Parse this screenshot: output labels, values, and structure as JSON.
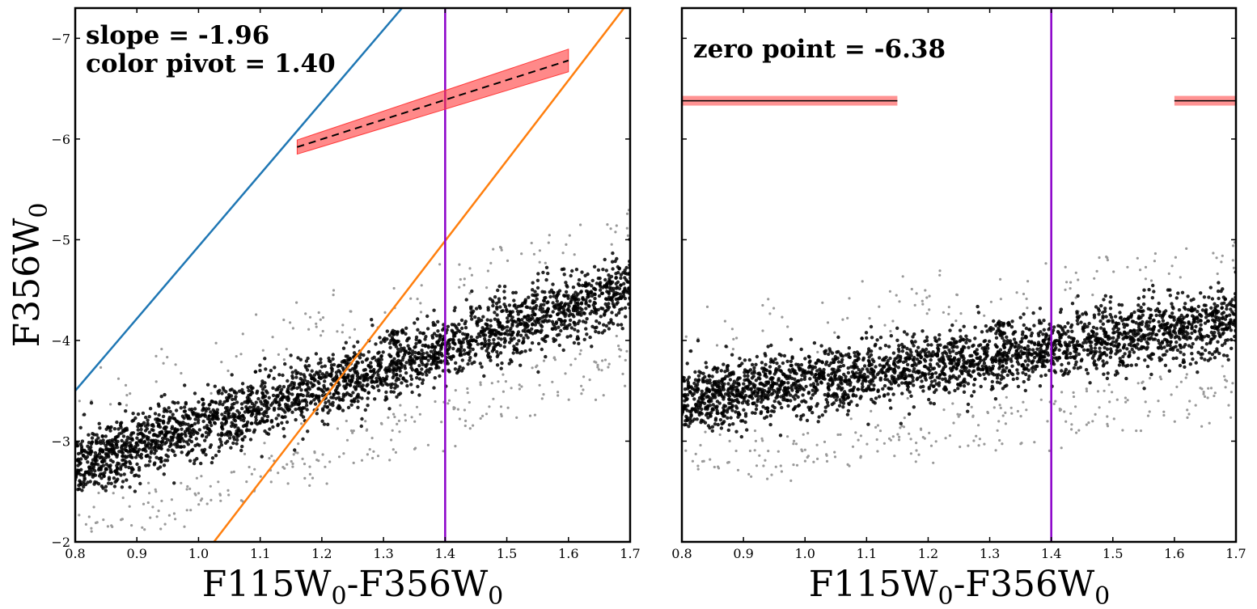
{
  "colors": {
    "blue_line": "#1f77b4",
    "orange_line": "#ff7f0e",
    "pivot_line": "#8b00c9",
    "fit_band": "#ff3b3b",
    "annotation": "#0000ee",
    "rgb_points": "#000000",
    "rejected_points": "#9a9a9a"
  },
  "chart_data": [
    {
      "type": "scatter",
      "title": "",
      "xlabel": "F115W",
      "xlabel_sub": "0",
      "xlabel_mid": "-F356W",
      "xlabel_sub2": "0",
      "ylabel": "F356W",
      "ylabel_sub": "0",
      "xlim": [
        0.8,
        1.7
      ],
      "ylim": [
        -2,
        -7.3
      ],
      "y_inverted": true,
      "xticks": [
        "0.8",
        "0.9",
        "1.0",
        "1.1",
        "1.2",
        "1.3",
        "1.4",
        "1.5",
        "1.6",
        "1.7"
      ],
      "yticks": [
        "−7",
        "−6",
        "−5",
        "−4",
        "−3",
        "−2"
      ],
      "ytick_values": [
        -7,
        -6,
        -5,
        -4,
        -3,
        -2
      ],
      "annotations": [
        "slope = -1.96",
        "color pivot = 1.40"
      ],
      "pivot_color": 1.4,
      "blue_boundary": {
        "x": [
          0.8,
          1.33
        ],
        "y": [
          -3.5,
          -7.3
        ]
      },
      "orange_boundary": {
        "x": [
          1.025,
          1.69
        ],
        "y": [
          -2.0,
          -7.3
        ]
      },
      "fit_line": {
        "x": [
          1.16,
          1.6
        ],
        "y": [
          -5.92,
          -6.78
        ],
        "band": 0.07
      },
      "scatter_density": {
        "selected_ridge": {
          "x_at_mag_minus3": 0.92,
          "slope": -1.96
        },
        "series": [
          {
            "name": "selected stars",
            "color": "#000000",
            "count": "dense"
          },
          {
            "name": "rejected stars",
            "color": "#9a9a9a",
            "count": "sparse"
          }
        ]
      }
    },
    {
      "type": "scatter",
      "title": "",
      "xlabel": "F115W",
      "xlabel_sub": "0",
      "xlabel_mid": "-F356W",
      "xlabel_sub2": "0",
      "xlim": [
        0.8,
        1.7
      ],
      "ylim": [
        -2,
        -7.3
      ],
      "y_inverted": true,
      "xticks": [
        "0.8",
        "0.9",
        "1.0",
        "1.1",
        "1.2",
        "1.3",
        "1.4",
        "1.5",
        "1.6",
        "1.7"
      ],
      "ytick_values": [
        -7,
        -6,
        -5,
        -4,
        -3,
        -2
      ],
      "annotations": [
        "zero point = -6.38"
      ],
      "pivot_color": 1.4,
      "zero_point": -6.38,
      "zero_point_segments": [
        {
          "x": [
            0.8,
            1.15
          ]
        },
        {
          "x": [
            1.6,
            1.7
          ]
        }
      ]
    }
  ]
}
